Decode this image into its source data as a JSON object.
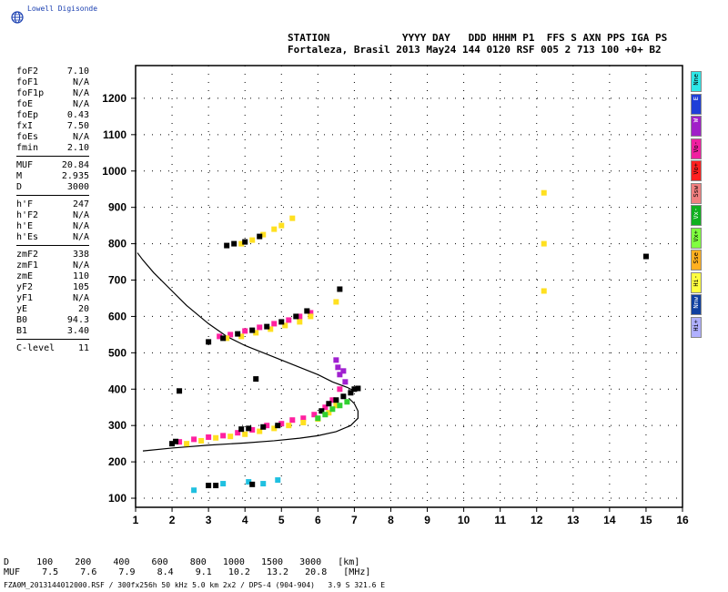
{
  "logo": {
    "text": "Lowell Digisonde",
    "icon": "globe-icon"
  },
  "header": {
    "labels": "STATION            YYYY DAY   DDD HHHM P1  FFS S AXN PPS IGA PS",
    "values": "Fortaleza, Brasil 2013 May24 144 0120 RSF 005 2 713 100 +0+ B2"
  },
  "params": [
    [
      {
        "k": "foF2",
        "v": "7.10"
      },
      {
        "k": "foF1",
        "v": "N/A"
      },
      {
        "k": "foF1p",
        "v": "N/A"
      },
      {
        "k": "foE",
        "v": "N/A"
      },
      {
        "k": "foEp",
        "v": "0.43"
      },
      {
        "k": "fxI",
        "v": "7.50"
      },
      {
        "k": "foEs",
        "v": "N/A"
      },
      {
        "k": "fmin",
        "v": "2.10"
      }
    ],
    [
      {
        "k": "MUF",
        "v": "20.84"
      },
      {
        "k": "M",
        "v": "2.935"
      },
      {
        "k": "D",
        "v": "3000"
      }
    ],
    [
      {
        "k": "h'F",
        "v": "247"
      },
      {
        "k": "h'F2",
        "v": "N/A"
      },
      {
        "k": "h'E",
        "v": "N/A"
      },
      {
        "k": "h'Es",
        "v": "N/A"
      }
    ],
    [
      {
        "k": "zmF2",
        "v": "338"
      },
      {
        "k": "zmF1",
        "v": "N/A"
      },
      {
        "k": "zmE",
        "v": "110"
      },
      {
        "k": "yF2",
        "v": "105"
      },
      {
        "k": "yF1",
        "v": "N/A"
      },
      {
        "k": "yE",
        "v": "20"
      },
      {
        "k": "B0",
        "v": "94.3"
      },
      {
        "k": "B1",
        "v": "3.40"
      }
    ],
    [
      {
        "k": "C-level",
        "v": "11"
      }
    ]
  ],
  "modes": [
    {
      "label": "Nne",
      "color": "#2ee8e8"
    },
    {
      "label": "E",
      "color": "#1f3fd8"
    },
    {
      "label": "W",
      "color": "#a020c8"
    },
    {
      "label": "Vo-",
      "color": "#f020a0"
    },
    {
      "label": "Vo+",
      "color": "#ff2020"
    },
    {
      "label": "Ssw",
      "color": "#f08080"
    },
    {
      "label": "Vx-",
      "color": "#10b020"
    },
    {
      "label": "Vx+",
      "color": "#80ff40"
    },
    {
      "label": "Sse",
      "color": "#ffb020"
    },
    {
      "label": "Hi-",
      "color": "#ffff40"
    },
    {
      "label": "Nnw",
      "color": "#1040a0"
    },
    {
      "label": "Hi+",
      "color": "#b0b0ff"
    }
  ],
  "footer": {
    "d_row": "D     100    200    400    600    800   1000   1500   3000   [km]",
    "muf_row": "MUF    7.5    7.6    7.9    8.4    9.1   10.2   13.2   20.8   [MHz]",
    "file": "FZA0M_2013144012000.RSF / 300fx256h 50 kHz 5.0 km 2x2 / DPS-4 (904-904)   3.9 S 321.6 E"
  },
  "chart_data": {
    "type": "scatter",
    "title": "",
    "xlabel": "",
    "ylabel": "",
    "xlim": [
      1,
      16
    ],
    "ylim": [
      75,
      1290
    ],
    "x_ticks": [
      1,
      2,
      3,
      4,
      5,
      6,
      7,
      8,
      9,
      10,
      11,
      12,
      13,
      14,
      15,
      16
    ],
    "y_ticks": [
      100,
      200,
      300,
      400,
      500,
      600,
      700,
      800,
      900,
      1000,
      1100,
      1200
    ],
    "grid": "dotted",
    "series": [
      {
        "color": "#000000",
        "type": "line",
        "x": [
          1.05,
          1.2,
          1.5,
          1.9,
          2.4,
          3.0,
          3.5,
          4.0,
          4.5,
          5.0,
          5.5,
          6.0,
          6.4,
          6.8,
          7.0
        ],
        "y": [
          775,
          755,
          720,
          680,
          630,
          580,
          545,
          520,
          500,
          480,
          460,
          440,
          420,
          405,
          395
        ]
      },
      {
        "color": "#000000",
        "type": "line",
        "x": [
          1.2,
          2.0,
          3.0,
          4.0,
          4.8,
          5.5,
          6.0,
          6.5,
          6.9,
          7.1,
          7.1,
          7.0,
          6.85
        ],
        "y": [
          230,
          238,
          246,
          252,
          258,
          265,
          272,
          283,
          300,
          320,
          340,
          360,
          375
        ]
      },
      {
        "color": "#ff20a0",
        "x": [
          2.2,
          2.6,
          3.0,
          3.4,
          3.8,
          4.2,
          4.6,
          5.0,
          5.3,
          5.6,
          5.9,
          6.2,
          6.4,
          6.6
        ],
        "y": [
          255,
          262,
          268,
          272,
          280,
          288,
          300,
          305,
          315,
          320,
          330,
          350,
          370,
          400
        ]
      },
      {
        "color": "#ffe020",
        "x": [
          2.4,
          2.8,
          3.2,
          3.6,
          4.0,
          4.4,
          4.8,
          5.2,
          5.6,
          6.0,
          6.3,
          6.5
        ],
        "y": [
          250,
          258,
          266,
          270,
          276,
          284,
          292,
          300,
          308,
          318,
          335,
          355
        ]
      },
      {
        "color": "#000000",
        "x": [
          2.0,
          2.1,
          3.9,
          4.1,
          4.5,
          4.9,
          6.1,
          6.3,
          6.5,
          6.7,
          6.9,
          7.0,
          7.1
        ],
        "y": [
          250,
          256,
          290,
          292,
          296,
          300,
          340,
          360,
          370,
          380,
          390,
          400,
          402
        ]
      },
      {
        "color": "#30d030",
        "x": [
          6.0,
          6.2,
          6.4,
          6.6,
          6.8
        ],
        "y": [
          320,
          330,
          345,
          355,
          365
        ]
      },
      {
        "color": "#a020d0",
        "x": [
          6.5,
          6.55,
          6.6,
          6.7,
          6.75
        ],
        "y": [
          480,
          460,
          440,
          450,
          420
        ]
      },
      {
        "color": "#ff20a0",
        "x": [
          3.3,
          3.6,
          4.0,
          4.4,
          4.8,
          5.2,
          5.5,
          5.8
        ],
        "y": [
          545,
          550,
          560,
          570,
          580,
          590,
          600,
          610
        ]
      },
      {
        "color": "#ffe020",
        "x": [
          3.5,
          3.9,
          4.3,
          4.7,
          5.1,
          5.5,
          5.8,
          6.5
        ],
        "y": [
          540,
          545,
          555,
          565,
          575,
          585,
          600,
          640
        ]
      },
      {
        "color": "#000000",
        "x": [
          3.0,
          3.4,
          3.8,
          4.2,
          4.6,
          5.0,
          5.4,
          5.7,
          6.6
        ],
        "y": [
          530,
          540,
          552,
          562,
          572,
          585,
          600,
          615,
          675
        ]
      },
      {
        "color": "#ffe020",
        "x": [
          3.9,
          4.2,
          4.5,
          4.8,
          5.0,
          5.3,
          12.2,
          12.2,
          12.2
        ],
        "y": [
          800,
          810,
          825,
          840,
          850,
          870,
          940,
          800,
          670
        ]
      },
      {
        "color": "#000000",
        "x": [
          3.5,
          3.7,
          4.0,
          4.4,
          15.0,
          4.3,
          2.2
        ],
        "y": [
          795,
          800,
          805,
          820,
          765,
          428,
          395
        ]
      },
      {
        "color": "#20c0e0",
        "x": [
          2.6,
          3.4,
          4.1,
          4.5,
          4.9
        ],
        "y": [
          122,
          140,
          145,
          140,
          150
        ]
      },
      {
        "color": "#000000",
        "x": [
          3.0,
          3.2,
          4.2
        ],
        "y": [
          135,
          135,
          138
        ]
      }
    ]
  }
}
